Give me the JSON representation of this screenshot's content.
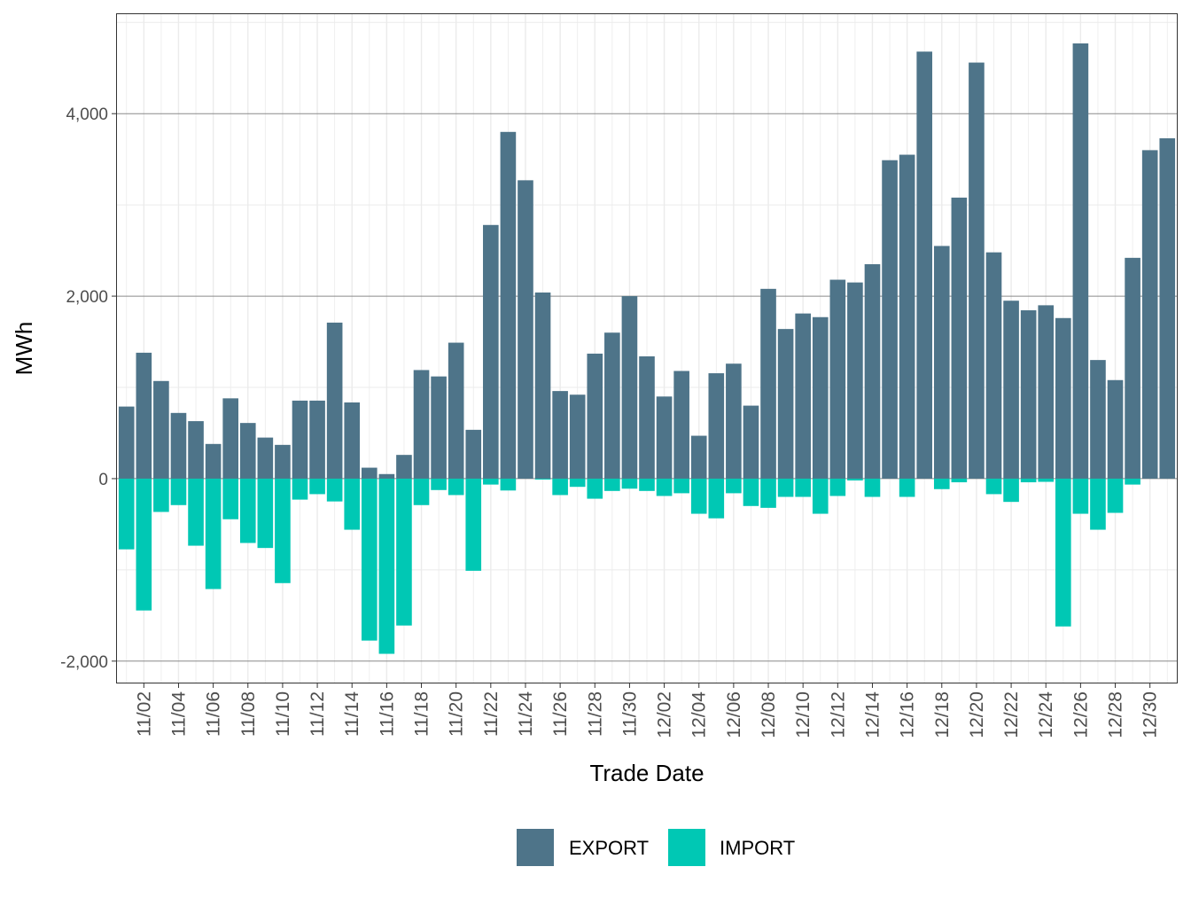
{
  "chart_data": {
    "type": "bar",
    "stacked": "diverging",
    "xlabel": "Trade Date",
    "ylabel": "MWh",
    "ylim": [
      -2245,
      5100
    ],
    "yticks": [
      -2000,
      0,
      2000,
      4000
    ],
    "ytick_labels": [
      "-2,000",
      "0",
      "2,000",
      "4,000"
    ],
    "grid": true,
    "legend_position": "bottom",
    "categories": [
      "11/01",
      "11/02",
      "11/03",
      "11/04",
      "11/05",
      "11/06",
      "11/07",
      "11/08",
      "11/09",
      "11/10",
      "11/11",
      "11/12",
      "11/13",
      "11/14",
      "11/15",
      "11/16",
      "11/17",
      "11/18",
      "11/19",
      "11/20",
      "11/21",
      "11/22",
      "11/23",
      "11/24",
      "11/25",
      "11/26",
      "11/27",
      "11/28",
      "11/29",
      "11/30",
      "12/01",
      "12/02",
      "12/03",
      "12/04",
      "12/05",
      "12/06",
      "12/07",
      "12/08",
      "12/09",
      "12/10",
      "12/11",
      "12/12",
      "12/13",
      "12/14",
      "12/15",
      "12/16",
      "12/17",
      "12/18",
      "12/19",
      "12/20",
      "12/21",
      "12/22",
      "12/23",
      "12/24",
      "12/25",
      "12/26",
      "12/27",
      "12/28",
      "12/29",
      "12/30",
      "12/31"
    ],
    "xtick_labels": [
      "11/02",
      "11/04",
      "11/06",
      "11/08",
      "11/10",
      "11/12",
      "11/14",
      "11/16",
      "11/18",
      "11/20",
      "11/22",
      "11/24",
      "11/26",
      "11/28",
      "11/30",
      "12/02",
      "12/04",
      "12/06",
      "12/08",
      "12/10",
      "12/12",
      "12/14",
      "12/16",
      "12/18",
      "12/20",
      "12/22",
      "12/24",
      "12/26",
      "12/28",
      "12/30"
    ],
    "series": [
      {
        "name": "EXPORT",
        "color": "#4E7489",
        "values": [
          790,
          1380,
          1070,
          720,
          630,
          380,
          880,
          610,
          450,
          370,
          855,
          855,
          1710,
          835,
          120,
          50,
          260,
          1190,
          1120,
          1490,
          535,
          2780,
          3800,
          3270,
          2040,
          960,
          920,
          1370,
          1600,
          2000,
          1340,
          900,
          1180,
          470,
          1155,
          1260,
          800,
          2080,
          1640,
          1810,
          1770,
          2180,
          2150,
          2350,
          3490,
          3550,
          4680,
          2550,
          3080,
          4560,
          2480,
          1950,
          1845,
          1900,
          1760,
          4770,
          1300,
          1080,
          2420,
          3600,
          3730
        ]
      },
      {
        "name": "IMPORT",
        "color": "#00C8B4",
        "values": [
          -775,
          -1445,
          -365,
          -290,
          -735,
          -1210,
          -445,
          -705,
          -760,
          -1145,
          -230,
          -170,
          -250,
          -560,
          -1775,
          -1920,
          -1610,
          -290,
          -125,
          -180,
          -1010,
          -65,
          -130,
          0,
          -10,
          -180,
          -90,
          -220,
          -135,
          -110,
          -135,
          -190,
          -160,
          -385,
          -435,
          -160,
          -300,
          -320,
          -200,
          -200,
          -385,
          -190,
          -20,
          -200,
          0,
          -200,
          0,
          -115,
          -40,
          0,
          -170,
          -255,
          -40,
          -35,
          -1620,
          -385,
          -560,
          -375,
          -65,
          0,
          0
        ]
      }
    ]
  }
}
